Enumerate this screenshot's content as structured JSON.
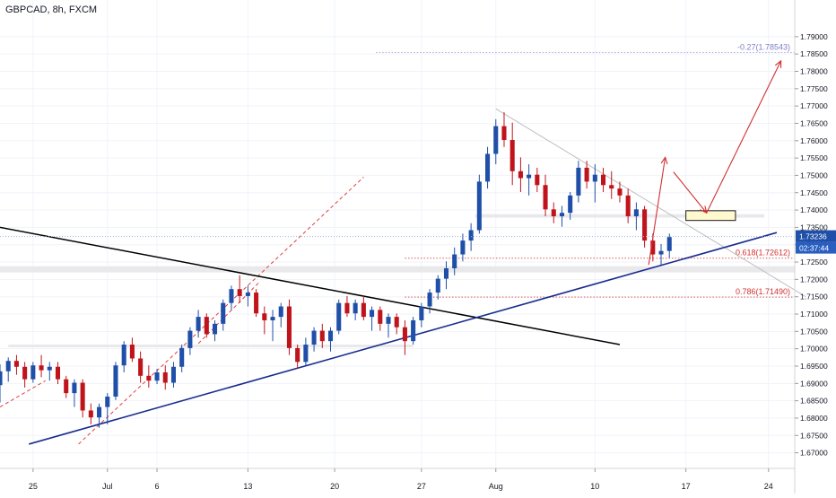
{
  "chart_data": {
    "type": "candlestick",
    "title": "GBPCAD, 8h, FXCM",
    "colors": {
      "up": "#1f4fa8",
      "down": "#c0141c",
      "grid": "#f0f3fa",
      "axis_text": "#131722",
      "support_line": "#1a2d8f",
      "resistance_line": "#000000",
      "fib_line": "#d32f2f",
      "fib_ext_line": "#7e7ec8",
      "channel_line": "#e04040",
      "projection_arrow": "#d32f2f",
      "target_box_fill": "#fff9d0",
      "target_box_border": "#1a1a1a",
      "zone_fill": "#e9e9ec",
      "price_label_bg": "#1f4fa8",
      "countdown_bg": "#2a5fc0"
    },
    "y_axis": {
      "ylim": [
        1.6655,
        1.7985
      ],
      "ticks": [
        1.67,
        1.675,
        1.68,
        1.685,
        1.69,
        1.695,
        1.7,
        1.705,
        1.71,
        1.715,
        1.72,
        1.725,
        1.73,
        1.735,
        1.74,
        1.745,
        1.75,
        1.755,
        1.76,
        1.765,
        1.77,
        1.775,
        1.78,
        1.785,
        1.79
      ],
      "tick_labels": [
        "1.67000",
        "1.67500",
        "1.68000",
        "1.68500",
        "1.69000",
        "1.69500",
        "1.70000",
        "1.70500",
        "1.71000",
        "1.71500",
        "1.72000",
        "1.72500",
        "1.73000",
        "1.73500",
        "1.74000",
        "1.74500",
        "1.75000",
        "1.75500",
        "1.76000",
        "1.76500",
        "1.77000",
        "1.77500",
        "1.78000",
        "1.78500",
        "1.79000"
      ]
    },
    "x_axis": {
      "xlim": [
        0,
        94
      ],
      "ticks": [
        {
          "x": 4,
          "label": "25"
        },
        {
          "x": 13,
          "label": "Jul"
        },
        {
          "x": 19,
          "label": "6"
        },
        {
          "x": 30,
          "label": "13"
        },
        {
          "x": 40.5,
          "label": "20"
        },
        {
          "x": 51,
          "label": "27"
        },
        {
          "x": 60,
          "label": "Aug"
        },
        {
          "x": 72,
          "label": "10"
        },
        {
          "x": 83,
          "label": "17"
        },
        {
          "x": 93,
          "label": "24"
        }
      ]
    },
    "candles": [
      {
        "x": 0,
        "o": 1.6895,
        "h": 1.6955,
        "l": 1.6845,
        "c": 1.6935
      },
      {
        "x": 1,
        "o": 1.6935,
        "h": 1.6975,
        "l": 1.6905,
        "c": 1.6965
      },
      {
        "x": 2,
        "o": 1.6965,
        "h": 1.6982,
        "l": 1.6925,
        "c": 1.6948
      },
      {
        "x": 3,
        "o": 1.6948,
        "h": 1.6962,
        "l": 1.6888,
        "c": 1.6912
      },
      {
        "x": 4,
        "o": 1.6912,
        "h": 1.6962,
        "l": 1.6902,
        "c": 1.6952
      },
      {
        "x": 5,
        "o": 1.6952,
        "h": 1.6982,
        "l": 1.6918,
        "c": 1.6938
      },
      {
        "x": 6,
        "o": 1.6938,
        "h": 1.6962,
        "l": 1.6908,
        "c": 1.6948
      },
      {
        "x": 7,
        "o": 1.6948,
        "h": 1.6962,
        "l": 1.6898,
        "c": 1.6912
      },
      {
        "x": 8,
        "o": 1.6912,
        "h": 1.6922,
        "l": 1.6858,
        "c": 1.6872
      },
      {
        "x": 9,
        "o": 1.6872,
        "h": 1.6912,
        "l": 1.6832,
        "c": 1.6902
      },
      {
        "x": 10,
        "o": 1.6902,
        "h": 1.6912,
        "l": 1.6802,
        "c": 1.6822
      },
      {
        "x": 11,
        "o": 1.6822,
        "h": 1.6842,
        "l": 1.6782,
        "c": 1.6802
      },
      {
        "x": 12,
        "o": 1.6802,
        "h": 1.6842,
        "l": 1.6772,
        "c": 1.6832
      },
      {
        "x": 13,
        "o": 1.6832,
        "h": 1.6872,
        "l": 1.6782,
        "c": 1.6862
      },
      {
        "x": 14,
        "o": 1.6862,
        "h": 1.6962,
        "l": 1.6852,
        "c": 1.6952
      },
      {
        "x": 15,
        "o": 1.6952,
        "h": 1.7022,
        "l": 1.6932,
        "c": 1.7012
      },
      {
        "x": 16,
        "o": 1.7012,
        "h": 1.7032,
        "l": 1.6962,
        "c": 1.6972
      },
      {
        "x": 17,
        "o": 1.6972,
        "h": 1.6992,
        "l": 1.6902,
        "c": 1.6922
      },
      {
        "x": 18,
        "o": 1.6922,
        "h": 1.6952,
        "l": 1.6888,
        "c": 1.6908
      },
      {
        "x": 19,
        "o": 1.6908,
        "h": 1.6942,
        "l": 1.6898,
        "c": 1.6932
      },
      {
        "x": 20,
        "o": 1.6932,
        "h": 1.6952,
        "l": 1.6882,
        "c": 1.6902
      },
      {
        "x": 21,
        "o": 1.6902,
        "h": 1.6962,
        "l": 1.6888,
        "c": 1.6948
      },
      {
        "x": 22,
        "o": 1.6948,
        "h": 1.7012,
        "l": 1.6932,
        "c": 1.7002
      },
      {
        "x": 23,
        "o": 1.7002,
        "h": 1.7062,
        "l": 1.6982,
        "c": 1.7052
      },
      {
        "x": 24,
        "o": 1.7052,
        "h": 1.7112,
        "l": 1.7032,
        "c": 1.7092
      },
      {
        "x": 25,
        "o": 1.7092,
        "h": 1.7102,
        "l": 1.7032,
        "c": 1.7042
      },
      {
        "x": 26,
        "o": 1.7042,
        "h": 1.7082,
        "l": 1.7022,
        "c": 1.7072
      },
      {
        "x": 27,
        "o": 1.7072,
        "h": 1.7142,
        "l": 1.7052,
        "c": 1.7132
      },
      {
        "x": 28,
        "o": 1.7132,
        "h": 1.7182,
        "l": 1.7112,
        "c": 1.7172
      },
      {
        "x": 29,
        "o": 1.7172,
        "h": 1.7212,
        "l": 1.7132,
        "c": 1.7152
      },
      {
        "x": 30,
        "o": 1.7152,
        "h": 1.7182,
        "l": 1.7122,
        "c": 1.7162
      },
      {
        "x": 31,
        "o": 1.7162,
        "h": 1.7172,
        "l": 1.7092,
        "c": 1.7102
      },
      {
        "x": 32,
        "o": 1.7102,
        "h": 1.7122,
        "l": 1.7042,
        "c": 1.7082
      },
      {
        "x": 33,
        "o": 1.7082,
        "h": 1.7112,
        "l": 1.7022,
        "c": 1.7092
      },
      {
        "x": 34,
        "o": 1.7092,
        "h": 1.7132,
        "l": 1.7062,
        "c": 1.7122
      },
      {
        "x": 35,
        "o": 1.7122,
        "h": 1.7142,
        "l": 1.6982,
        "c": 1.7002
      },
      {
        "x": 36,
        "o": 1.7002,
        "h": 1.7012,
        "l": 1.6942,
        "c": 1.6962
      },
      {
        "x": 37,
        "o": 1.6962,
        "h": 1.7032,
        "l": 1.6952,
        "c": 1.7012
      },
      {
        "x": 38,
        "o": 1.7012,
        "h": 1.7062,
        "l": 1.6992,
        "c": 1.7052
      },
      {
        "x": 39,
        "o": 1.7052,
        "h": 1.7072,
        "l": 1.7002,
        "c": 1.7022
      },
      {
        "x": 40,
        "o": 1.7022,
        "h": 1.7062,
        "l": 1.6992,
        "c": 1.7052
      },
      {
        "x": 41,
        "o": 1.7052,
        "h": 1.7142,
        "l": 1.7042,
        "c": 1.7132
      },
      {
        "x": 42,
        "o": 1.7132,
        "h": 1.7152,
        "l": 1.7092,
        "c": 1.7102
      },
      {
        "x": 43,
        "o": 1.7102,
        "h": 1.7142,
        "l": 1.7082,
        "c": 1.7132
      },
      {
        "x": 44,
        "o": 1.7132,
        "h": 1.7152,
        "l": 1.7082,
        "c": 1.7092
      },
      {
        "x": 45,
        "o": 1.7092,
        "h": 1.7122,
        "l": 1.7052,
        "c": 1.7112
      },
      {
        "x": 46,
        "o": 1.7112,
        "h": 1.7122,
        "l": 1.7052,
        "c": 1.7072
      },
      {
        "x": 47,
        "o": 1.7072,
        "h": 1.7102,
        "l": 1.7032,
        "c": 1.7092
      },
      {
        "x": 48,
        "o": 1.7092,
        "h": 1.7102,
        "l": 1.7042,
        "c": 1.7062
      },
      {
        "x": 49,
        "o": 1.7062,
        "h": 1.7082,
        "l": 1.6982,
        "c": 1.7022
      },
      {
        "x": 50,
        "o": 1.7022,
        "h": 1.7092,
        "l": 1.7012,
        "c": 1.7082
      },
      {
        "x": 51,
        "o": 1.7082,
        "h": 1.7132,
        "l": 1.7062,
        "c": 1.7122
      },
      {
        "x": 52,
        "o": 1.7122,
        "h": 1.7172,
        "l": 1.7102,
        "c": 1.7162
      },
      {
        "x": 53,
        "o": 1.7162,
        "h": 1.7212,
        "l": 1.7142,
        "c": 1.7202
      },
      {
        "x": 54,
        "o": 1.7202,
        "h": 1.7252,
        "l": 1.7172,
        "c": 1.7232
      },
      {
        "x": 55,
        "o": 1.7232,
        "h": 1.7292,
        "l": 1.7212,
        "c": 1.7272
      },
      {
        "x": 56,
        "o": 1.7272,
        "h": 1.7332,
        "l": 1.7252,
        "c": 1.7312
      },
      {
        "x": 57,
        "o": 1.7312,
        "h": 1.7362,
        "l": 1.7282,
        "c": 1.7342
      },
      {
        "x": 58,
        "o": 1.7342,
        "h": 1.7502,
        "l": 1.7332,
        "c": 1.7482
      },
      {
        "x": 59,
        "o": 1.7482,
        "h": 1.7582,
        "l": 1.7462,
        "c": 1.7562
      },
      {
        "x": 60,
        "o": 1.7562,
        "h": 1.7662,
        "l": 1.7532,
        "c": 1.7642
      },
      {
        "x": 61,
        "o": 1.7642,
        "h": 1.7682,
        "l": 1.7582,
        "c": 1.7602
      },
      {
        "x": 62,
        "o": 1.7602,
        "h": 1.7652,
        "l": 1.7472,
        "c": 1.7512
      },
      {
        "x": 63,
        "o": 1.7512,
        "h": 1.7552,
        "l": 1.7452,
        "c": 1.7492
      },
      {
        "x": 64,
        "o": 1.7492,
        "h": 1.7532,
        "l": 1.7442,
        "c": 1.7502
      },
      {
        "x": 65,
        "o": 1.7502,
        "h": 1.7522,
        "l": 1.7452,
        "c": 1.7472
      },
      {
        "x": 66,
        "o": 1.7472,
        "h": 1.7502,
        "l": 1.7382,
        "c": 1.7402
      },
      {
        "x": 67,
        "o": 1.7402,
        "h": 1.7422,
        "l": 1.7362,
        "c": 1.7382
      },
      {
        "x": 68,
        "o": 1.7382,
        "h": 1.7412,
        "l": 1.7352,
        "c": 1.7392
      },
      {
        "x": 69,
        "o": 1.7392,
        "h": 1.7452,
        "l": 1.7372,
        "c": 1.7442
      },
      {
        "x": 70,
        "o": 1.7442,
        "h": 1.7542,
        "l": 1.7422,
        "c": 1.7522
      },
      {
        "x": 71,
        "o": 1.7522,
        "h": 1.7542,
        "l": 1.7462,
        "c": 1.7482
      },
      {
        "x": 72,
        "o": 1.7482,
        "h": 1.7532,
        "l": 1.7422,
        "c": 1.7502
      },
      {
        "x": 73,
        "o": 1.7502,
        "h": 1.7522,
        "l": 1.7452,
        "c": 1.7472
      },
      {
        "x": 74,
        "o": 1.7472,
        "h": 1.7512,
        "l": 1.7432,
        "c": 1.7462
      },
      {
        "x": 75,
        "o": 1.7462,
        "h": 1.7482,
        "l": 1.7422,
        "c": 1.7442
      },
      {
        "x": 76,
        "o": 1.7442,
        "h": 1.7462,
        "l": 1.7362,
        "c": 1.7382
      },
      {
        "x": 77,
        "o": 1.7382,
        "h": 1.7422,
        "l": 1.7342,
        "c": 1.7402
      },
      {
        "x": 78,
        "o": 1.7402,
        "h": 1.7412,
        "l": 1.7292,
        "c": 1.7312
      },
      {
        "x": 79,
        "o": 1.7312,
        "h": 1.7332,
        "l": 1.7252,
        "c": 1.7272
      },
      {
        "x": 80,
        "o": 1.7272,
        "h": 1.7302,
        "l": 1.7242,
        "c": 1.7282
      },
      {
        "x": 81,
        "o": 1.7282,
        "h": 1.7332,
        "l": 1.7262,
        "c": 1.7322
      }
    ],
    "support_trendline": {
      "label": "",
      "points": [
        [
          3.5,
          1.6725
        ],
        [
          94,
          1.7335
        ]
      ]
    },
    "resistance_trendline": {
      "label": "",
      "points": [
        [
          0,
          1.735
        ],
        [
          75,
          1.7012
        ]
      ]
    },
    "channel_lines": [
      {
        "points": [
          [
            9.5,
            1.6725
          ],
          [
            44,
            1.7495
          ]
        ]
      },
      {
        "points": [
          [
            24,
            1.7015
          ],
          [
            31.5,
            1.7195
          ]
        ]
      },
      {
        "points": [
          [
            0,
            1.6832
          ],
          [
            5.5,
            1.6908
          ]
        ]
      }
    ],
    "descending_line": {
      "points": [
        [
          60,
          1.7692
        ],
        [
          97.5,
          1.715
        ]
      ]
    },
    "zones": [
      {
        "x0": 0,
        "x1": 97.5,
        "y0": 1.722,
        "y1": 1.7238
      },
      {
        "x0": 57.5,
        "x1": 92.5,
        "y0": 1.7378,
        "y1": 1.7388
      },
      {
        "x0": 1,
        "x1": 50,
        "y0": 1.7005,
        "y1": 1.7012
      }
    ],
    "target_box": {
      "x0": 83,
      "x1": 89,
      "y0": 1.737,
      "y1": 1.7398
    },
    "fib_levels": [
      {
        "label": "0.618(1.72612)",
        "value": 1.72612,
        "x_start": 49,
        "kind": "retracement"
      },
      {
        "label": "0.786(1.71490)",
        "value": 1.7149,
        "x_start": 49,
        "kind": "retracement"
      },
      {
        "label": "-0.27(1.78543)",
        "value": 1.78543,
        "x_start": 45.5,
        "kind": "extension"
      }
    ],
    "projection_path": [
      [
        78.5,
        1.7242
      ],
      [
        80.5,
        1.7552
      ]
    ],
    "projection_path_2": [
      [
        81.5,
        1.751
      ],
      [
        85.5,
        1.7392
      ],
      [
        94.5,
        1.783
      ]
    ],
    "current_price": {
      "value": 1.73236,
      "label": "1.73236",
      "countdown": "02:37:44"
    }
  }
}
